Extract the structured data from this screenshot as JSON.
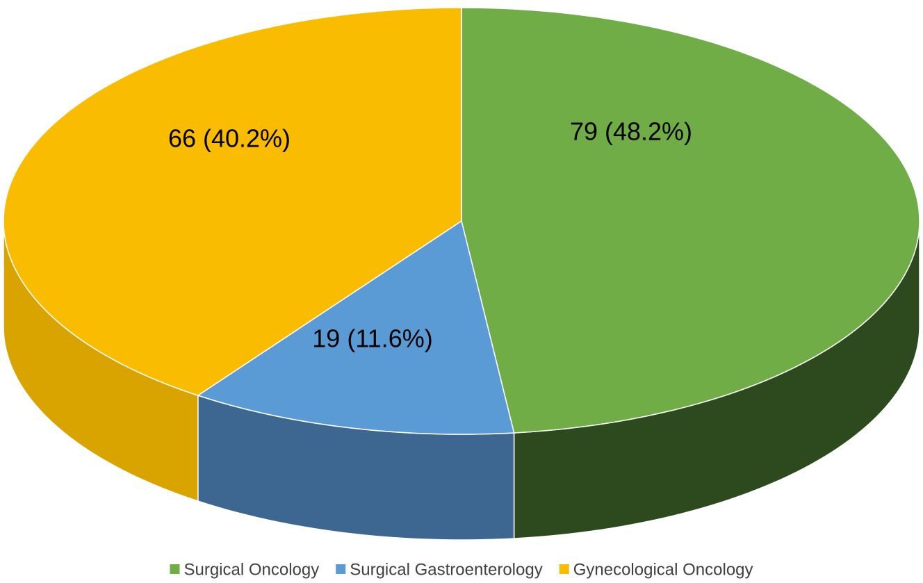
{
  "chart_data": {
    "type": "pie3d",
    "categories": [
      "Surgical Oncology",
      "Surgical Gastroenterology",
      "Gynecological Oncology"
    ],
    "values": [
      79,
      19,
      66
    ],
    "value_labels": [
      "79 (48.2%)",
      "19 (11.6%)",
      "66 (40.2%)"
    ],
    "colors": [
      "#70ad47",
      "#5b9bd5",
      "#f9bc00"
    ],
    "side_colors": [
      "#2d4a1e",
      "#3d6690",
      "#d9a300"
    ],
    "legend": "bottom"
  }
}
